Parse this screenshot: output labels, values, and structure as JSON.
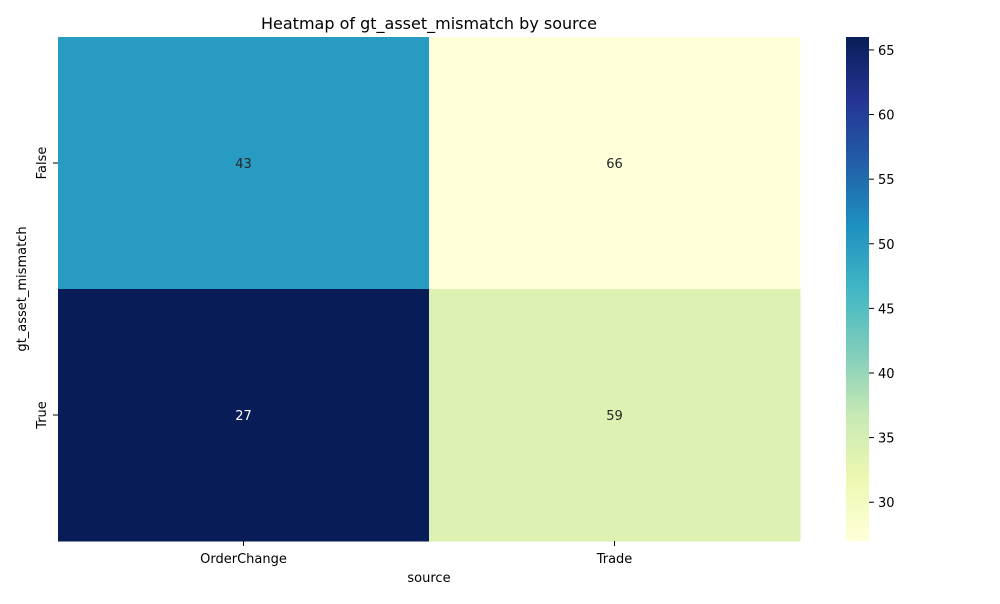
{
  "chart_data": {
    "type": "heatmap",
    "title": "Heatmap of gt_asset_mismatch by source",
    "xlabel": "source",
    "ylabel": "gt_asset_mismatch",
    "x_categories": [
      "OrderChange",
      "Trade"
    ],
    "y_categories": [
      "False",
      "True"
    ],
    "values": [
      [
        43,
        66
      ],
      [
        27,
        59
      ]
    ],
    "annotations": [
      [
        "43",
        "66"
      ],
      [
        "27",
        "59"
      ]
    ],
    "colormap": "YlGnBu",
    "vmin": 27,
    "vmax": 66,
    "colorbar_ticks": [
      30,
      35,
      40,
      45,
      50,
      55,
      60,
      65
    ]
  }
}
